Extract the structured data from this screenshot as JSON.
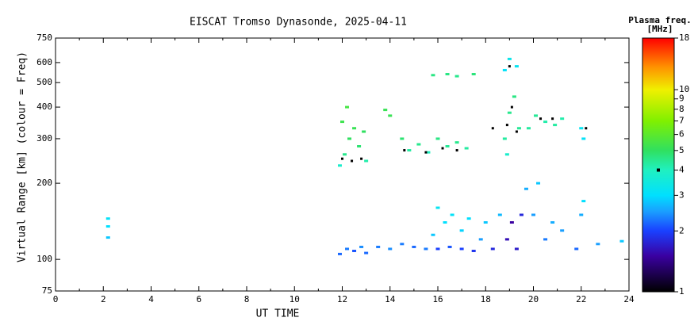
{
  "chart_data": {
    "type": "scatter",
    "title": "EISCAT Tromso Dynasonde, 2025-04-11",
    "x_label": "UT TIME",
    "y_label": "Virtual Range [km] (colour = Freq)",
    "colorbar_title": "Plasma freq.",
    "colorbar_unit": "[MHz]",
    "log_y": true,
    "log_color": true,
    "xlim": [
      0,
      24
    ],
    "xticks": [
      0,
      2,
      4,
      6,
      8,
      10,
      12,
      14,
      16,
      18,
      20,
      22,
      24
    ],
    "ylim": [
      75,
      750
    ],
    "yticks": [
      75,
      100,
      200,
      300,
      400,
      500,
      600,
      750
    ],
    "clim": [
      1,
      18
    ],
    "cticks": [
      1,
      2,
      3,
      4,
      5,
      6,
      7,
      8,
      9,
      10,
      18
    ],
    "colorscale": [
      [
        1,
        "#000000"
      ],
      [
        1.5,
        "#3a00a0"
      ],
      [
        2,
        "#1a40ff"
      ],
      [
        2.5,
        "#1a9fff"
      ],
      [
        3,
        "#00e0ff"
      ],
      [
        4,
        "#20f0c0"
      ],
      [
        5,
        "#30e060"
      ],
      [
        7,
        "#80f000"
      ],
      [
        10,
        "#f0f000"
      ],
      [
        13,
        "#ff9000"
      ],
      [
        18,
        "#ff0000"
      ]
    ],
    "colorbar_marker": 4,
    "points": {
      "x": [
        2.2,
        2.2,
        2.2,
        11.9,
        12.2,
        12.5,
        12.8,
        13.0,
        11.9,
        12.1,
        12.3,
        12.5,
        12.7,
        12.9,
        13.0,
        12.2,
        12.0,
        13.5,
        14.0,
        14.5,
        15.0,
        15.5,
        13.8,
        14.0,
        14.5,
        14.8,
        15.2,
        15.6,
        16.0,
        16.4,
        16.8,
        17.2,
        15.8,
        16.0,
        16.3,
        16.6,
        17.0,
        17.3,
        16.0,
        16.5,
        17.0,
        17.5,
        15.8,
        16.4,
        16.8,
        17.5,
        17.8,
        18.0,
        18.3,
        18.6,
        18.8,
        19.0,
        19.2,
        19.4,
        18.9,
        18.8,
        19.0,
        19.3,
        18.9,
        19.1,
        19.3,
        19.5,
        19.7,
        20.0,
        20.2,
        20.5,
        20.8,
        21.2,
        19.8,
        20.1,
        20.5,
        20.9,
        21.2,
        21.8,
        22.0,
        22.1,
        22.1,
        22.0,
        22.7,
        23.7
      ],
      "y": [
        122,
        135,
        145,
        105,
        110,
        108,
        112,
        106,
        235,
        260,
        300,
        330,
        280,
        320,
        245,
        400,
        350,
        112,
        110,
        115,
        112,
        110,
        390,
        370,
        300,
        270,
        285,
        265,
        300,
        280,
        290,
        275,
        125,
        160,
        140,
        150,
        130,
        145,
        110,
        112,
        110,
        108,
        535,
        540,
        530,
        540,
        120,
        140,
        110,
        150,
        300,
        380,
        440,
        330,
        260,
        560,
        620,
        580,
        120,
        140,
        110,
        150,
        190,
        150,
        200,
        120,
        140,
        130,
        330,
        370,
        350,
        340,
        360,
        110,
        150,
        170,
        300,
        330,
        115,
        118
      ],
      "c": [
        2.8,
        3,
        3.1,
        2.2,
        2.3,
        2.1,
        2.4,
        2.2,
        3.8,
        4.5,
        5,
        5.2,
        4.8,
        5,
        4.2,
        5.5,
        5.3,
        2.3,
        2.4,
        2.3,
        2.2,
        2.3,
        5.2,
        5.2,
        4.8,
        4.3,
        4.5,
        4,
        4.6,
        4.4,
        4.5,
        4.3,
        2.8,
        3.2,
        3,
        3.1,
        2.9,
        3,
        2.0,
        2.1,
        2.0,
        1.9,
        4.6,
        4.6,
        4.5,
        4.7,
        2.5,
        2.8,
        1.8,
        2.7,
        4.3,
        4.5,
        4.6,
        4.4,
        3.8,
        3.1,
        3.3,
        3.2,
        1.6,
        1.5,
        1.7,
        1.8,
        2.6,
        2.5,
        2.8,
        2.3,
        2.6,
        2.5,
        4.3,
        4.4,
        4.2,
        4.3,
        4.2,
        2.2,
        2.6,
        3,
        3.1,
        3.2,
        2.5,
        2.8
      ]
    },
    "fit_points": {
      "color": "#000000",
      "x": [
        12.0,
        12.4,
        12.8,
        14.6,
        15.5,
        16.2,
        16.8,
        18.3,
        18.9,
        19.1,
        19.3,
        20.3,
        20.8,
        22.2,
        19.0
      ],
      "y": [
        250,
        245,
        250,
        270,
        265,
        275,
        270,
        330,
        340,
        400,
        320,
        360,
        360,
        330,
        580
      ]
    }
  }
}
